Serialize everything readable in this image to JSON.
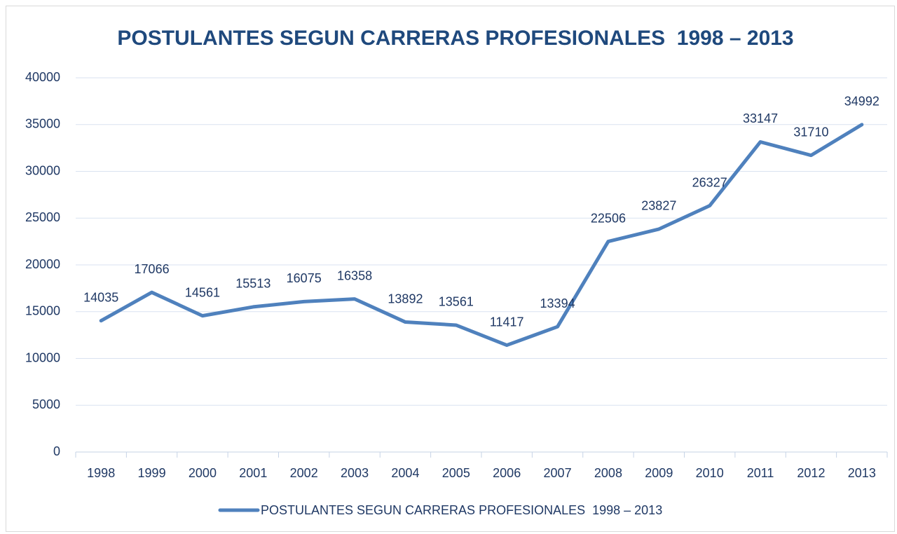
{
  "chart_data": {
    "type": "line",
    "title": "POSTULANTES SEGUN CARRERAS PROFESIONALES  1998 – 2013",
    "categories": [
      "1998",
      "1999",
      "2000",
      "2001",
      "2002",
      "2003",
      "2004",
      "2005",
      "2006",
      "2007",
      "2008",
      "2009",
      "2010",
      "2011",
      "2012",
      "2013"
    ],
    "series": [
      {
        "name": "POSTULANTES SEGUN CARRERAS PROFESIONALES  1998 – 2013",
        "color": "#4f81bd",
        "values": [
          14035,
          17066,
          14561,
          15513,
          16075,
          16358,
          13892,
          13561,
          11417,
          13394,
          22506,
          23827,
          26327,
          33147,
          31710,
          34992
        ]
      }
    ],
    "ylim": [
      0,
      40000
    ],
    "yticks": [
      0,
      5000,
      10000,
      15000,
      20000,
      25000,
      30000,
      35000,
      40000
    ],
    "grid": true,
    "legend": "bottom"
  }
}
